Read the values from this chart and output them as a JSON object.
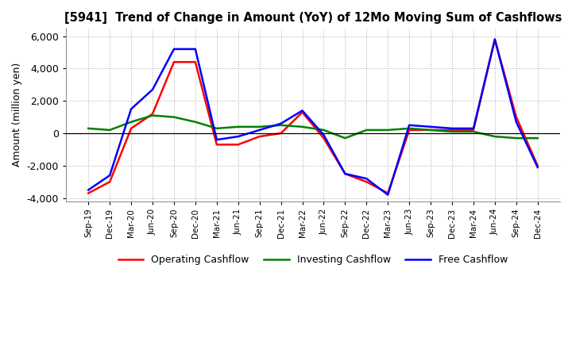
{
  "title": "[5941]  Trend of Change in Amount (YoY) of 12Mo Moving Sum of Cashflows",
  "ylabel": "Amount (million yen)",
  "ylim": [
    -4200,
    6500
  ],
  "yticks": [
    -4000,
    -2000,
    0,
    2000,
    4000,
    6000
  ],
  "x_labels": [
    "Sep-19",
    "Dec-19",
    "Mar-20",
    "Jun-20",
    "Sep-20",
    "Dec-20",
    "Mar-21",
    "Jun-21",
    "Sep-21",
    "Dec-21",
    "Mar-22",
    "Jun-22",
    "Sep-22",
    "Dec-22",
    "Mar-23",
    "Jun-23",
    "Sep-23",
    "Dec-23",
    "Mar-24",
    "Jun-24",
    "Sep-24",
    "Dec-24"
  ],
  "operating": [
    -3700,
    -3000,
    300,
    1200,
    4400,
    4400,
    -700,
    -700,
    -200,
    0,
    1300,
    -300,
    -2500,
    -3000,
    -3700,
    200,
    200,
    200,
    200,
    5800,
    1000,
    -2000
  ],
  "investing": [
    300,
    200,
    700,
    1100,
    1000,
    700,
    300,
    400,
    400,
    500,
    400,
    200,
    -300,
    200,
    200,
    300,
    200,
    100,
    100,
    -200,
    -300,
    -300
  ],
  "free": [
    -3500,
    -2600,
    1500,
    2700,
    5200,
    5200,
    -400,
    -200,
    200,
    600,
    1400,
    -100,
    -2500,
    -2800,
    -3800,
    500,
    400,
    300,
    300,
    5800,
    700,
    -2100
  ],
  "op_color": "#ff0000",
  "inv_color": "#008000",
  "free_color": "#0000ff",
  "bg_color": "#ffffff",
  "grid_color": "#aaaaaa"
}
